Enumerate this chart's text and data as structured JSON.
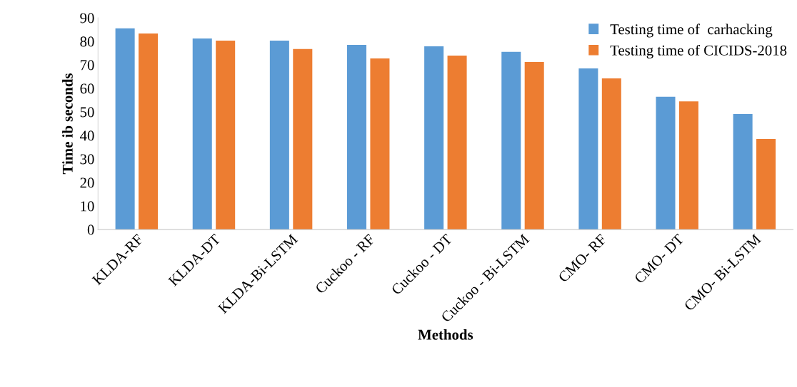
{
  "chart_data": {
    "type": "bar",
    "xlabel": "Methods",
    "ylabel": "Time ib seconds",
    "categories": [
      "KLDA-RF",
      "KLDA-DT",
      "KLDA-Bi-LSTM",
      "Cuckoo - RF",
      "Cuckoo - DT",
      "Cuckoo - Bi-LSTM",
      "CMO- RF",
      "CMO- DT",
      "CMO- Bi-LSTM"
    ],
    "series": [
      {
        "name": "Testing time of  carhacking",
        "color": "#5b9bd5",
        "values": [
          85.5,
          81.2,
          80.3,
          78.5,
          77.9,
          75.5,
          68.5,
          56.4,
          49.1
        ]
      },
      {
        "name": "Testing time of CICIDS-2018",
        "color": "#ed7d31",
        "values": [
          83.3,
          80.3,
          76.7,
          72.7,
          73.9,
          71.2,
          64.2,
          54.5,
          38.5
        ]
      }
    ],
    "ylim": [
      0,
      90
    ],
    "yticks": [
      0,
      10,
      20,
      30,
      40,
      50,
      60,
      70,
      80,
      90
    ],
    "grid": false,
    "legend": "top right"
  }
}
